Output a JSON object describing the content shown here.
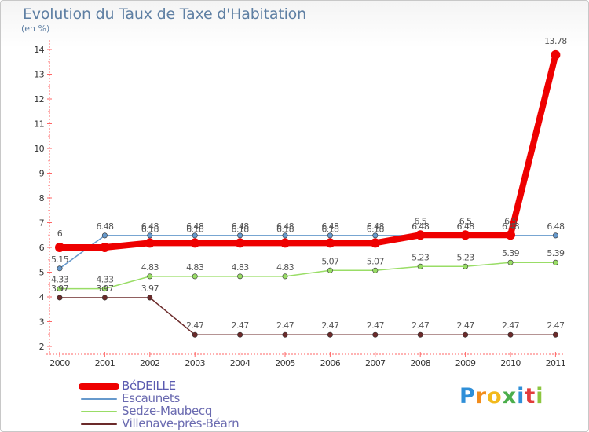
{
  "header": {
    "title": "Evolution du Taux de Taxe d'Habitation",
    "subtitle": "(en %)"
  },
  "chart_data": {
    "type": "line",
    "title": "Evolution du Taux de Taxe d'Habitation",
    "ylabel": "(en %)",
    "xlabel": "",
    "categories": [
      "2000",
      "2001",
      "2002",
      "2003",
      "2004",
      "2005",
      "2006",
      "2007",
      "2008",
      "2009",
      "2010",
      "2011"
    ],
    "ylim": [
      2,
      14
    ],
    "yticks": [
      "2",
      "3",
      "4",
      "5",
      "6",
      "7",
      "8",
      "9",
      "10",
      "11",
      "12",
      "13",
      "14"
    ],
    "series": [
      {
        "name": "Villenave-près-Béarn",
        "color": "#6b2a2a",
        "values": [
          3.97,
          3.97,
          3.97,
          2.47,
          2.47,
          2.47,
          2.47,
          2.47,
          2.47,
          2.47,
          2.47,
          2.47
        ],
        "labels": [
          "3.97",
          "3.97",
          "3.97",
          "2.47",
          "2.47",
          "2.47",
          "2.47",
          "2.47",
          "2.47",
          "2.47",
          "2.47",
          "2.47"
        ]
      },
      {
        "name": "Sedze-Maubecq",
        "color": "#99dd66",
        "values": [
          4.33,
          4.33,
          4.83,
          4.83,
          4.83,
          4.83,
          5.07,
          5.07,
          5.23,
          5.23,
          5.39,
          5.39
        ],
        "labels": [
          "4.33",
          "4.33",
          "4.83",
          "4.83",
          "4.83",
          "4.83",
          "5.07",
          "5.07",
          "5.23",
          "5.23",
          "5.39",
          "5.39"
        ]
      },
      {
        "name": "Escaunets",
        "color": "#6699cc",
        "values": [
          5.15,
          6.48,
          6.48,
          6.48,
          6.48,
          6.48,
          6.48,
          6.48,
          6.48,
          6.48,
          6.48,
          6.48
        ],
        "labels": [
          "5.15",
          "6.48",
          "6.48",
          "6.48",
          "6.48",
          "6.48",
          "6.48",
          "6.48",
          "6.48",
          "6.48",
          "6.48",
          "6.48"
        ]
      },
      {
        "name": "BéDEILLE",
        "color": "#ee0000",
        "values": [
          6,
          6,
          6.18,
          6.18,
          6.18,
          6.18,
          6.18,
          6.18,
          6.5,
          6.5,
          6.5,
          13.78
        ],
        "labels": [
          "6",
          "",
          "6.18",
          "6.18",
          "6.18",
          "6.18",
          "6.18",
          "6.18",
          "6.5",
          "6.5",
          "6.5",
          "13.78"
        ]
      }
    ],
    "legend": [
      {
        "name": "BéDEILLE",
        "color": "#ee0000"
      },
      {
        "name": "Escaunets",
        "color": "#6699cc"
      },
      {
        "name": "Sedze-Maubecq",
        "color": "#99dd66"
      },
      {
        "name": "Villenave-près-Béarn",
        "color": "#6b2a2a"
      }
    ],
    "legend_position": "bottom-left"
  },
  "logo": {
    "letters": [
      "P",
      "r",
      "o",
      "x",
      "i",
      "t",
      "i"
    ],
    "colors": [
      "#2f8fd8",
      "#f28c1c",
      "#f2b91c",
      "#4cae4c",
      "#2f8fd8",
      "#e23c3c",
      "#8cc63f"
    ]
  }
}
